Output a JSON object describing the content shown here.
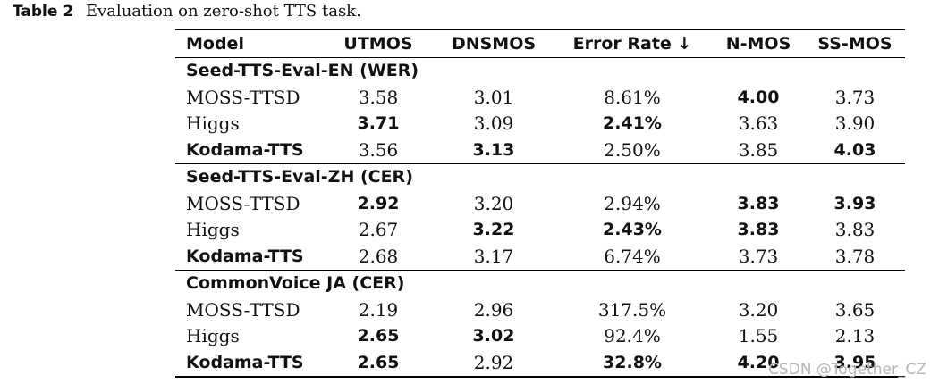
{
  "caption": {
    "label": "Table 2",
    "text": "Evaluation on zero-shot TTS task."
  },
  "header": {
    "model": "Model",
    "utmos": "UTMOS",
    "dnsmos": "DNSMOS",
    "error_rate": "Error Rate ↓",
    "nmos": "N-MOS",
    "ssmos": "SS-MOS"
  },
  "groups": [
    {
      "title": "Seed-TTS-Eval-EN (WER)",
      "rows": [
        {
          "model": "MOSS-TTSD",
          "model_bold": false,
          "utmos": "3.58",
          "utmos_bold": false,
          "dnsmos": "3.01",
          "dnsmos_bold": false,
          "error_rate": "8.61%",
          "error_rate_bold": false,
          "nmos": "4.00",
          "nmos_bold": true,
          "ssmos": "3.73",
          "ssmos_bold": false
        },
        {
          "model": "Higgs",
          "model_bold": false,
          "utmos": "3.71",
          "utmos_bold": true,
          "dnsmos": "3.09",
          "dnsmos_bold": false,
          "error_rate": "2.41%",
          "error_rate_bold": true,
          "nmos": "3.63",
          "nmos_bold": false,
          "ssmos": "3.90",
          "ssmos_bold": false
        },
        {
          "model": "Kodama-TTS",
          "model_bold": true,
          "utmos": "3.56",
          "utmos_bold": false,
          "dnsmos": "3.13",
          "dnsmos_bold": true,
          "error_rate": "2.50%",
          "error_rate_bold": false,
          "nmos": "3.85",
          "nmos_bold": false,
          "ssmos": "4.03",
          "ssmos_bold": true
        }
      ]
    },
    {
      "title": "Seed-TTS-Eval-ZH (CER)",
      "rows": [
        {
          "model": "MOSS-TTSD",
          "model_bold": false,
          "utmos": "2.92",
          "utmos_bold": true,
          "dnsmos": "3.20",
          "dnsmos_bold": false,
          "error_rate": "2.94%",
          "error_rate_bold": false,
          "nmos": "3.83",
          "nmos_bold": true,
          "ssmos": "3.93",
          "ssmos_bold": true
        },
        {
          "model": "Higgs",
          "model_bold": false,
          "utmos": "2.67",
          "utmos_bold": false,
          "dnsmos": "3.22",
          "dnsmos_bold": true,
          "error_rate": "2.43%",
          "error_rate_bold": true,
          "nmos": "3.83",
          "nmos_bold": true,
          "ssmos": "3.83",
          "ssmos_bold": false
        },
        {
          "model": "Kodama-TTS",
          "model_bold": true,
          "utmos": "2.68",
          "utmos_bold": false,
          "dnsmos": "3.17",
          "dnsmos_bold": false,
          "error_rate": "6.74%",
          "error_rate_bold": false,
          "nmos": "3.73",
          "nmos_bold": false,
          "ssmos": "3.78",
          "ssmos_bold": false
        }
      ]
    },
    {
      "title": "CommonVoice JA (CER)",
      "rows": [
        {
          "model": "MOSS-TTSD",
          "model_bold": false,
          "utmos": "2.19",
          "utmos_bold": false,
          "dnsmos": "2.96",
          "dnsmos_bold": false,
          "error_rate": "317.5%",
          "error_rate_bold": false,
          "nmos": "3.20",
          "nmos_bold": false,
          "ssmos": "3.65",
          "ssmos_bold": false
        },
        {
          "model": "Higgs",
          "model_bold": false,
          "utmos": "2.65",
          "utmos_bold": true,
          "dnsmos": "3.02",
          "dnsmos_bold": true,
          "error_rate": "92.4%",
          "error_rate_bold": false,
          "nmos": "1.55",
          "nmos_bold": false,
          "ssmos": "2.13",
          "ssmos_bold": false
        },
        {
          "model": "Kodama-TTS",
          "model_bold": true,
          "utmos": "2.65",
          "utmos_bold": true,
          "dnsmos": "2.92",
          "dnsmos_bold": false,
          "error_rate": "32.8%",
          "error_rate_bold": true,
          "nmos": "4.20",
          "nmos_bold": true,
          "ssmos": "3.95",
          "ssmos_bold": true
        }
      ]
    }
  ],
  "watermark": "CSDN @Together_CZ"
}
